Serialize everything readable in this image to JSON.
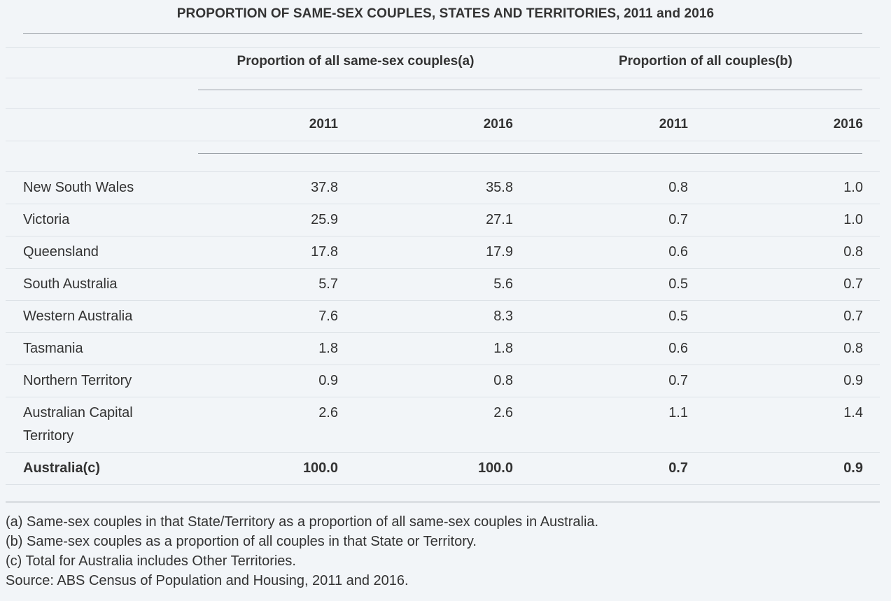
{
  "chart_data": {
    "type": "table",
    "title": "PROPORTION OF SAME-SEX COUPLES, STATES AND TERRITORIES, 2011 and 2016",
    "column_groups": [
      {
        "label": "Proportion of all same-sex couples(a)",
        "years": [
          "2011",
          "2016"
        ]
      },
      {
        "label": "Proportion of all couples(b)",
        "years": [
          "2011",
          "2016"
        ]
      }
    ],
    "rows": [
      {
        "label": "New South Wales",
        "values": [
          "37.8",
          "35.8",
          "0.8",
          "1.0"
        ]
      },
      {
        "label": "Victoria",
        "values": [
          "25.9",
          "27.1",
          "0.7",
          "1.0"
        ]
      },
      {
        "label": "Queensland",
        "values": [
          "17.8",
          "17.9",
          "0.6",
          "0.8"
        ]
      },
      {
        "label": "South Australia",
        "values": [
          "5.7",
          "5.6",
          "0.5",
          "0.7"
        ]
      },
      {
        "label": "Western Australia",
        "values": [
          "7.6",
          "8.3",
          "0.5",
          "0.7"
        ]
      },
      {
        "label": "Tasmania",
        "values": [
          "1.8",
          "1.8",
          "0.6",
          "0.8"
        ]
      },
      {
        "label": "Northern Territory",
        "values": [
          "0.9",
          "0.8",
          "0.7",
          "0.9"
        ]
      },
      {
        "label": "Australian Capital Territory",
        "label_lines": [
          "Australian Capital",
          "Territory"
        ],
        "values": [
          "2.6",
          "2.6",
          "1.1",
          "1.4"
        ]
      }
    ],
    "total": {
      "label": "Australia(c)",
      "values": [
        "100.0",
        "100.0",
        "0.7",
        "0.9"
      ]
    },
    "notes": [
      "(a) Same-sex couples in that State/Territory as a proportion of all same-sex couples in Australia.",
      "(b) Same-sex couples as a proportion of all couples in that State or Territory.",
      "(c) Total for Australia includes Other Territories.",
      "Source: ABS Census of Population and Housing, 2011 and 2016."
    ]
  }
}
